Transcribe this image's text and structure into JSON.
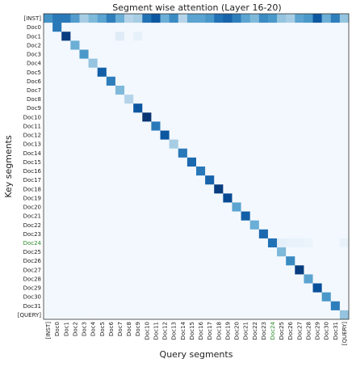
{
  "chart_data": {
    "type": "heatmap",
    "title": "Segment wise attention (Layer 16-20)",
    "xlabel": "Query segments",
    "ylabel": "Key segments",
    "labels": [
      "[INST]",
      "Doc0",
      "Doc1",
      "Doc2",
      "Doc3",
      "Doc4",
      "Doc5",
      "Doc6",
      "Doc7",
      "Doc8",
      "Doc9",
      "Doc10",
      "Doc11",
      "Doc12",
      "Doc13",
      "Doc14",
      "Doc15",
      "Doc16",
      "Doc17",
      "Doc18",
      "Doc19",
      "Doc20",
      "Doc21",
      "Doc22",
      "Doc23",
      "Doc24",
      "Doc25",
      "Doc26",
      "Doc27",
      "Doc28",
      "Doc29",
      "Doc30",
      "Doc31",
      "[QUERY]"
    ],
    "highlight_label": "Doc24",
    "highlight_color": "#2e8b2e",
    "colormap": "Blues",
    "value_range": [
      0,
      1
    ],
    "first_row_values": [
      0.62,
      0.72,
      0.72,
      0.58,
      0.35,
      0.45,
      0.55,
      0.7,
      0.5,
      0.3,
      0.35,
      0.75,
      0.85,
      0.5,
      0.65,
      0.3,
      0.55,
      0.55,
      0.6,
      0.75,
      0.8,
      0.7,
      0.55,
      0.45,
      0.65,
      0.6,
      0.4,
      0.35,
      0.55,
      0.6,
      0.85,
      0.5,
      0.7,
      0.4
    ],
    "diagonal_values": [
      0.62,
      0.72,
      0.95,
      0.5,
      0.6,
      0.4,
      0.82,
      0.7,
      0.45,
      0.3,
      0.85,
      0.98,
      0.72,
      0.85,
      0.35,
      0.72,
      0.78,
      0.72,
      0.8,
      0.95,
      0.9,
      0.55,
      0.82,
      0.5,
      0.78,
      0.75,
      0.45,
      0.65,
      0.95,
      0.55,
      0.88,
      0.6,
      0.7,
      0.4
    ],
    "notable_offdiagonal": [
      {
        "row": "Doc1",
        "col": "Doc7",
        "value": 0.12
      },
      {
        "row": "Doc1",
        "col": "Doc9",
        "value": 0.08
      },
      {
        "row": "Doc24",
        "col": "Doc25",
        "value": 0.09
      },
      {
        "row": "Doc24",
        "col": "Doc26",
        "value": 0.07
      },
      {
        "row": "Doc24",
        "col": "Doc27",
        "value": 0.07
      },
      {
        "row": "Doc24",
        "col": "Doc28",
        "value": 0.06
      },
      {
        "row": "Doc24",
        "col": "[QUERY]",
        "value": 0.07
      }
    ],
    "background_value": 0.02,
    "grid": false
  }
}
